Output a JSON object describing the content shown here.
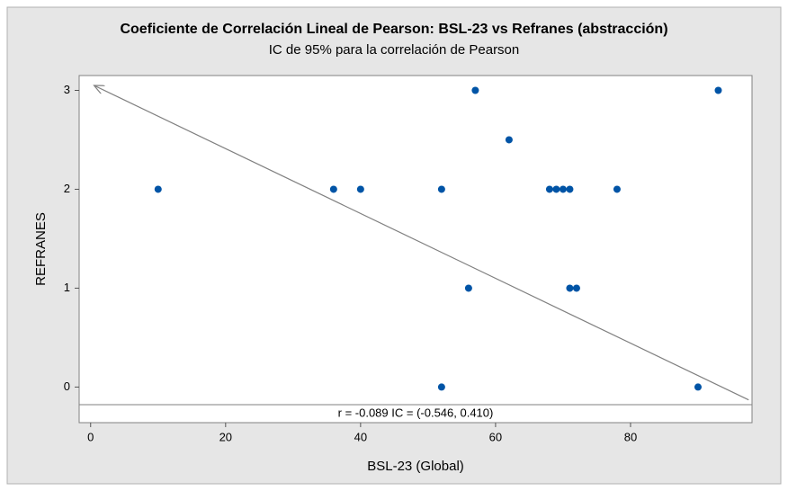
{
  "chart_data": {
    "type": "scatter",
    "title": "Coeficiente de Correlación Lineal de Pearson: BSL-23 vs Refranes (abstracción)",
    "subtitle": "IC de 95% para la correlación de Pearson",
    "x_label": "BSL-23 (Global)",
    "y_label": "REFRANES",
    "annotation": "r = -0.089  IC = (-0.546, 0.410)",
    "series": [
      {
        "color": "#0054a6",
        "x": [
          10,
          36,
          40,
          52,
          52,
          56,
          57,
          62,
          68,
          69,
          70,
          71,
          78,
          71,
          72,
          90,
          93
        ],
        "values": [
          2,
          2,
          2,
          2,
          0,
          1,
          3,
          2.5,
          2,
          2,
          2,
          2,
          2,
          1,
          1,
          0,
          3
        ]
      }
    ],
    "trend_line": {
      "color": "#808080",
      "x": [
        97.5,
        0.5
      ],
      "y": [
        -0.13,
        3.05
      ]
    },
    "xlim": [
      -1.7,
      98
    ],
    "ylim": [
      -0.36,
      3.15
    ],
    "xticks": [
      0,
      20,
      40,
      60,
      80
    ],
    "yticks": [
      0,
      1,
      2,
      3
    ]
  }
}
